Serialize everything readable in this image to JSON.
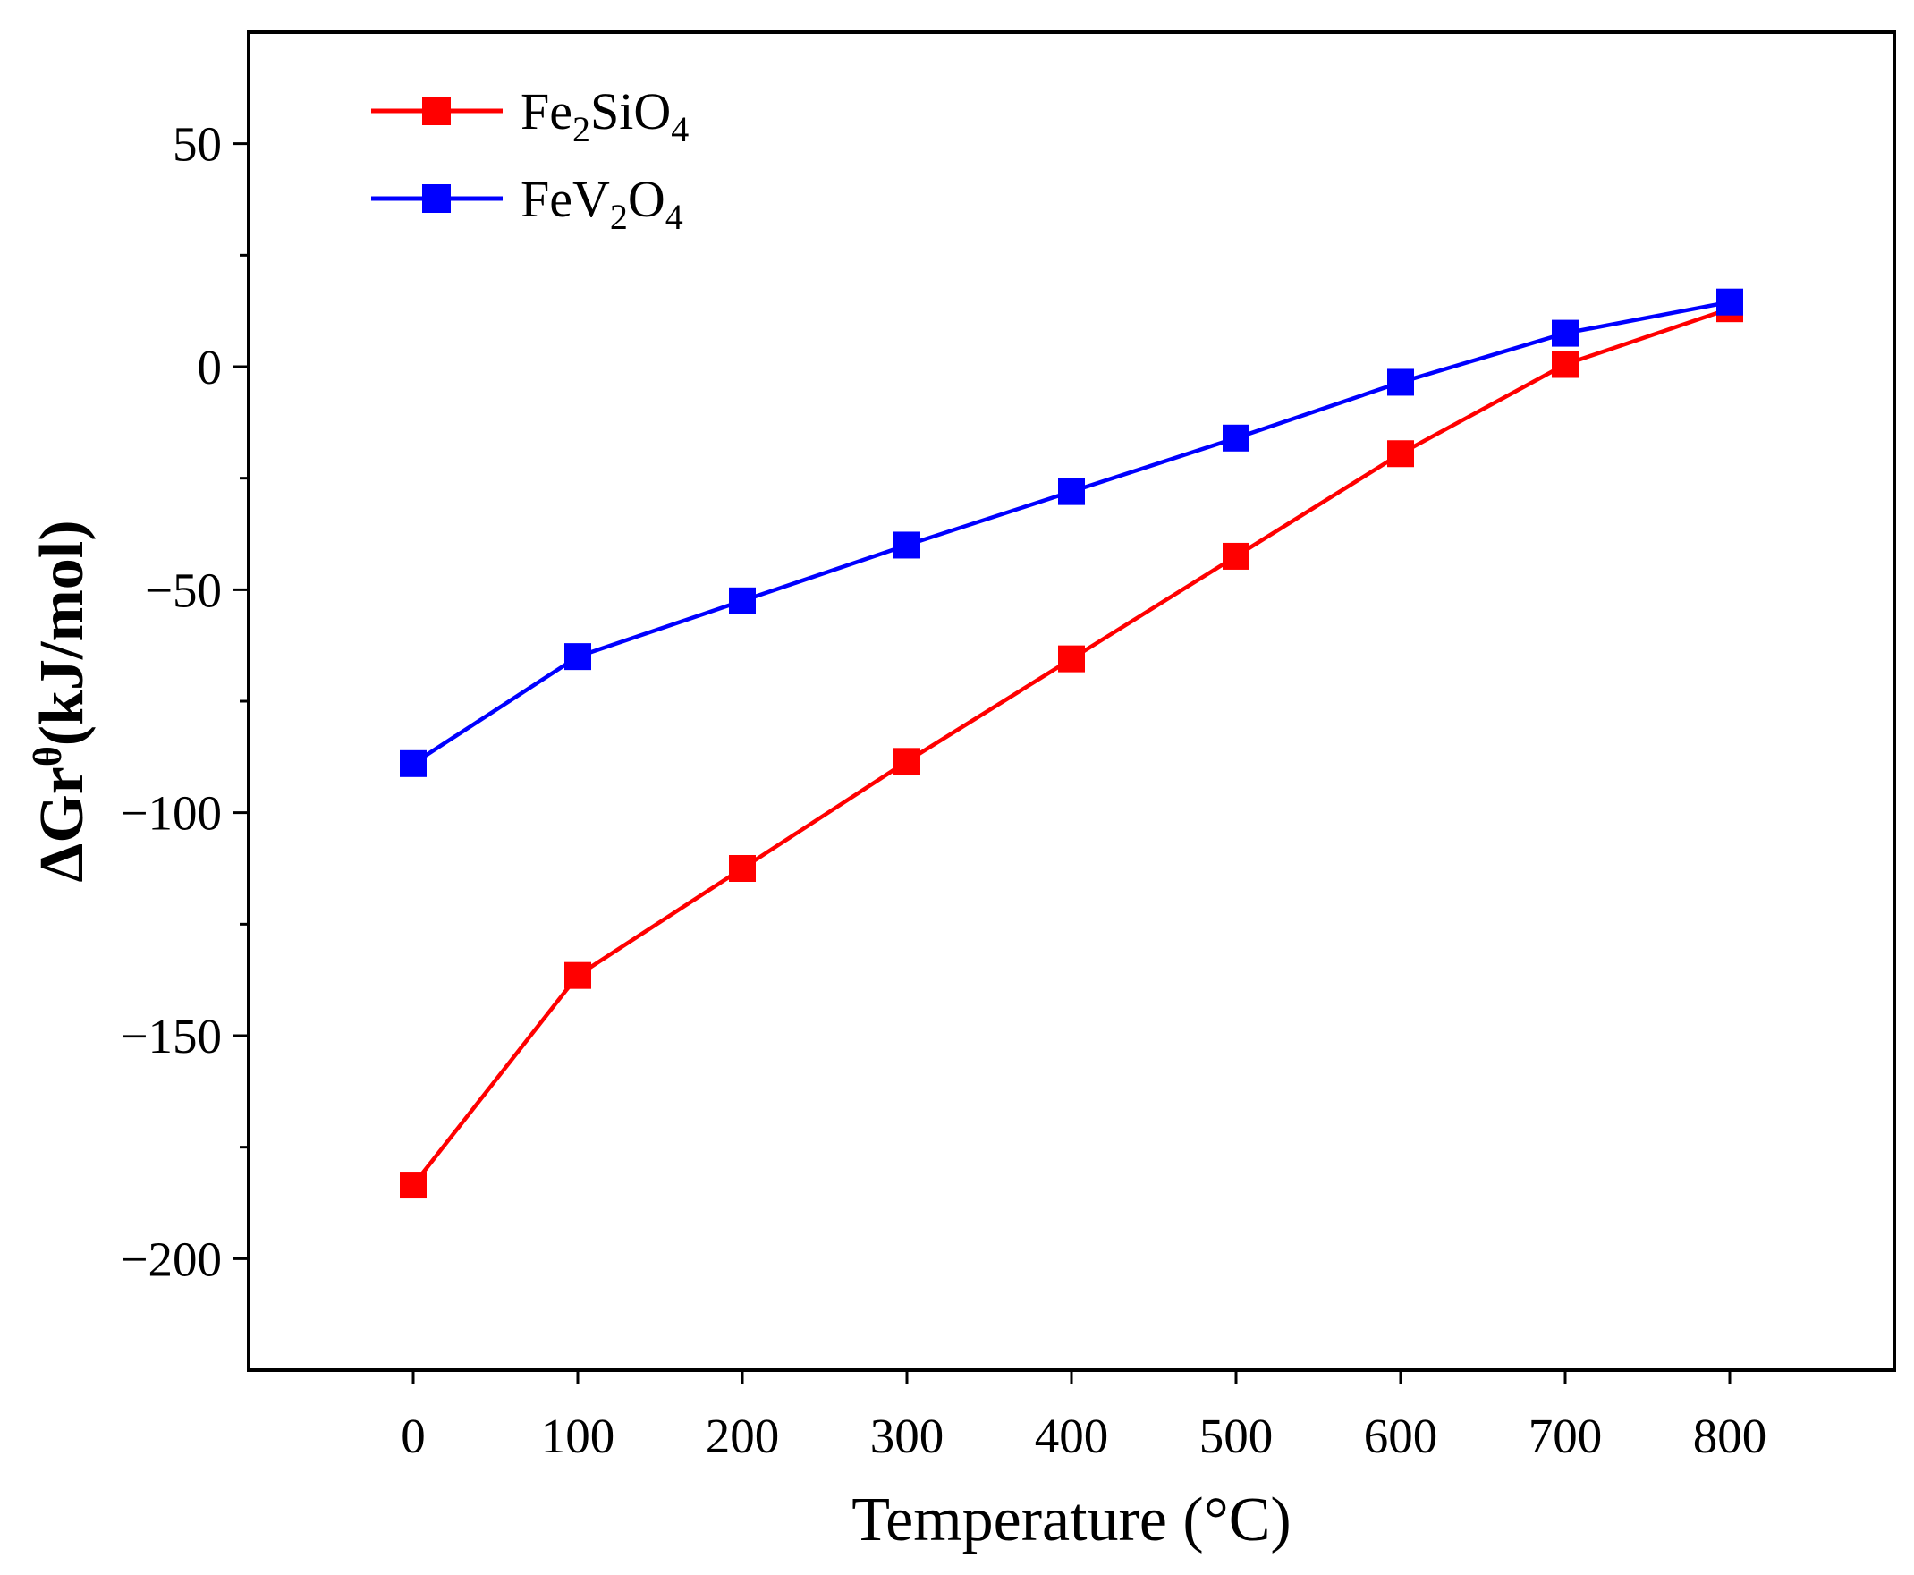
{
  "chart_data": {
    "type": "line",
    "title": "",
    "xlabel": "Temperature (°C)",
    "ylabel": "ΔGr^θ(kJ/mol)",
    "ylabel_parts": {
      "delta": "ΔGr",
      "sup": "θ",
      "units": "(kJ/mol)"
    },
    "xlim": [
      -100,
      900
    ],
    "ylim": [
      -225,
      75
    ],
    "x_ticks": [
      0,
      100,
      200,
      300,
      400,
      500,
      600,
      700,
      800
    ],
    "x_tick_labels": [
      "0",
      "100",
      "200",
      "300",
      "400",
      "500",
      "600",
      "700",
      "800"
    ],
    "y_ticks": [
      50,
      0,
      -50,
      -100,
      -150,
      -200
    ],
    "y_tick_labels": [
      "50",
      "0",
      "−50",
      "−100",
      "−150",
      "−200"
    ],
    "y_minor_ticks": [
      25,
      -25,
      -75,
      -125,
      -175
    ],
    "grid": false,
    "legend_position": "top-left",
    "series": [
      {
        "name": "Fe2SiO4",
        "legend_parts": [
          "Fe",
          "2",
          "SiO",
          "4"
        ],
        "color": "#ff0000",
        "marker": "square",
        "x": [
          0,
          100,
          200,
          300,
          400,
          500,
          600,
          700,
          800
        ],
        "y": [
          -183.5,
          -136.5,
          -112.5,
          -88.5,
          -65.5,
          -42.5,
          -19.5,
          0.5,
          13
        ]
      },
      {
        "name": "FeV2O4",
        "legend_parts": [
          "FeV",
          "2",
          "O",
          "4"
        ],
        "color": "#0000ff",
        "marker": "square",
        "x": [
          0,
          100,
          200,
          300,
          400,
          500,
          600,
          700,
          800
        ],
        "y": [
          -89,
          -65,
          -52.5,
          -40,
          -28,
          -16,
          -3.5,
          7.5,
          14.5
        ]
      }
    ]
  }
}
